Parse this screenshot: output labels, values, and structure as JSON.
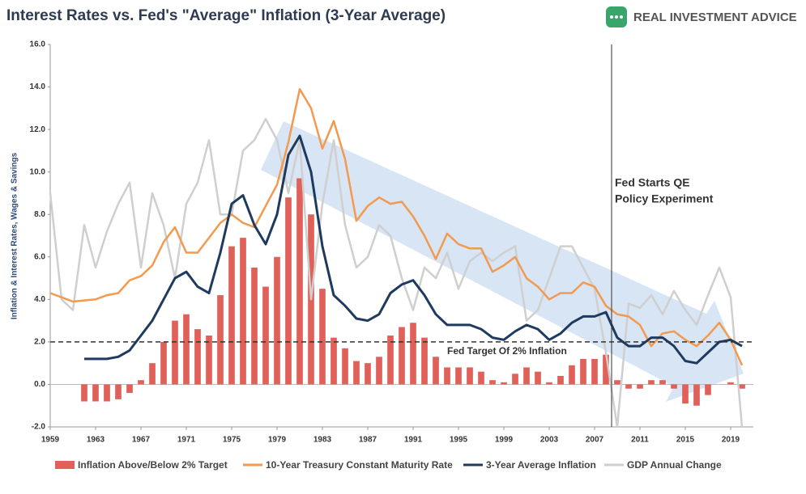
{
  "brand": "REAL INVESTMENT ADVICE",
  "chart_data": {
    "type": "line",
    "title": "Interest Rates vs. Fed's \"Average\" Inflation (3-Year Average)",
    "y_label": "Inflation & Interest Rates, Wages & Savings",
    "x": [
      1959,
      1960,
      1961,
      1962,
      1963,
      1964,
      1965,
      1966,
      1967,
      1968,
      1969,
      1970,
      1971,
      1972,
      1973,
      1974,
      1975,
      1976,
      1977,
      1978,
      1979,
      1980,
      1981,
      1982,
      1983,
      1984,
      1985,
      1986,
      1987,
      1988,
      1989,
      1990,
      1991,
      1992,
      1993,
      1994,
      1995,
      1996,
      1997,
      1998,
      1999,
      2000,
      2001,
      2002,
      2003,
      2004,
      2005,
      2006,
      2007,
      2008,
      2009,
      2010,
      2011,
      2012,
      2013,
      2014,
      2015,
      2016,
      2017,
      2018,
      2019,
      2020
    ],
    "xlim": [
      1959,
      2021
    ],
    "xticks": [
      1959,
      1963,
      1967,
      1971,
      1975,
      1979,
      1983,
      1987,
      1991,
      1995,
      1999,
      2003,
      2007,
      2011,
      2015,
      2019
    ],
    "ylim": [
      -2,
      16
    ],
    "yticks": [
      {
        "value": 16,
        "label": "16.0"
      },
      {
        "value": 14,
        "label": "14.0"
      },
      {
        "value": 12,
        "label": "12.0"
      },
      {
        "value": 10,
        "label": "10.0"
      },
      {
        "value": 8,
        "label": "8.0"
      },
      {
        "value": 6,
        "label": "6.0"
      },
      {
        "value": 4,
        "label": "4.0"
      },
      {
        "value": 2,
        "label": "2.0"
      },
      {
        "value": 0,
        "label": "0.0"
      },
      {
        "value": -2,
        "label": "-2.0"
      }
    ],
    "series": [
      {
        "name": "Inflation Above/Below 2% Target",
        "kind": "bar",
        "color": "#e0605a",
        "values": [
          null,
          null,
          null,
          -0.8,
          -0.8,
          -0.8,
          -0.7,
          -0.4,
          0.2,
          1.0,
          2.0,
          3.0,
          3.3,
          2.6,
          2.3,
          4.2,
          6.5,
          6.9,
          5.5,
          4.6,
          6.0,
          8.8,
          9.7,
          8.0,
          4.5,
          2.2,
          1.7,
          1.1,
          1.0,
          1.3,
          2.3,
          2.7,
          2.9,
          2.2,
          1.3,
          0.8,
          0.8,
          0.8,
          0.6,
          0.2,
          0.1,
          0.5,
          0.8,
          0.6,
          0.1,
          0.4,
          0.9,
          1.2,
          1.2,
          1.4,
          0.2,
          -0.2,
          -0.2,
          0.2,
          0.2,
          -0.2,
          -0.9,
          -1.0,
          -0.5,
          0.0,
          0.1,
          -0.2
        ]
      },
      {
        "name": "10-Year Treasury Constant Maturity Rate",
        "kind": "line",
        "color": "#f29a4f",
        "values": [
          4.3,
          4.1,
          3.9,
          3.95,
          4.0,
          4.2,
          4.3,
          4.9,
          5.1,
          5.6,
          6.7,
          7.4,
          6.2,
          6.2,
          6.9,
          7.6,
          8.0,
          7.6,
          7.4,
          8.4,
          9.4,
          11.4,
          13.9,
          13.0,
          11.1,
          12.4,
          10.6,
          7.7,
          8.4,
          8.8,
          8.5,
          8.6,
          7.9,
          7.0,
          5.9,
          7.1,
          6.6,
          6.4,
          6.4,
          5.3,
          5.6,
          6.0,
          5.0,
          4.6,
          4.0,
          4.3,
          4.3,
          4.8,
          4.6,
          3.7,
          3.3,
          3.2,
          2.8,
          1.8,
          2.4,
          2.5,
          2.1,
          1.8,
          2.3,
          2.9,
          2.1,
          0.9
        ]
      },
      {
        "name": "3-Year Average Inflation",
        "kind": "line",
        "color": "#1f3a5f",
        "values": [
          null,
          null,
          null,
          1.2,
          1.2,
          1.2,
          1.3,
          1.6,
          2.3,
          3.0,
          4.0,
          5.0,
          5.3,
          4.6,
          4.3,
          6.2,
          8.5,
          8.9,
          7.5,
          6.6,
          8.0,
          10.8,
          11.7,
          10.0,
          6.5,
          4.2,
          3.7,
          3.1,
          3.0,
          3.3,
          4.3,
          4.7,
          4.9,
          4.2,
          3.3,
          2.8,
          2.8,
          2.8,
          2.6,
          2.2,
          2.1,
          2.5,
          2.8,
          2.6,
          2.1,
          2.4,
          2.9,
          3.2,
          3.2,
          3.4,
          2.2,
          1.8,
          1.8,
          2.2,
          2.2,
          1.8,
          1.1,
          1.0,
          1.5,
          2.0,
          2.1,
          1.8
        ]
      },
      {
        "name": "GDP Annual Change",
        "kind": "line",
        "color": "#cfcfcf",
        "values": [
          9.0,
          4.0,
          3.5,
          7.5,
          5.5,
          7.2,
          8.5,
          9.5,
          5.5,
          9.0,
          7.5,
          5.0,
          8.5,
          9.5,
          11.5,
          8.0,
          8.0,
          11.0,
          11.5,
          12.5,
          11.5,
          9.0,
          11.5,
          4.0,
          8.5,
          11.5,
          7.5,
          5.5,
          6.0,
          7.5,
          7.0,
          5.0,
          3.5,
          5.5,
          5.0,
          6.2,
          4.5,
          5.8,
          6.2,
          5.8,
          6.2,
          6.5,
          3.0,
          3.5,
          5.0,
          6.5,
          6.5,
          5.5,
          4.5,
          1.5,
          -2.0,
          3.8,
          3.6,
          4.2,
          3.3,
          4.4,
          3.5,
          2.8,
          4.2,
          5.5,
          4.1,
          -2.0
        ]
      }
    ],
    "target": {
      "value": 2,
      "label": "Fed Target Of 2% Inflation"
    },
    "qe": {
      "x": 2008.5,
      "text": [
        "Fed Starts QE",
        "Policy Experiment"
      ]
    }
  }
}
